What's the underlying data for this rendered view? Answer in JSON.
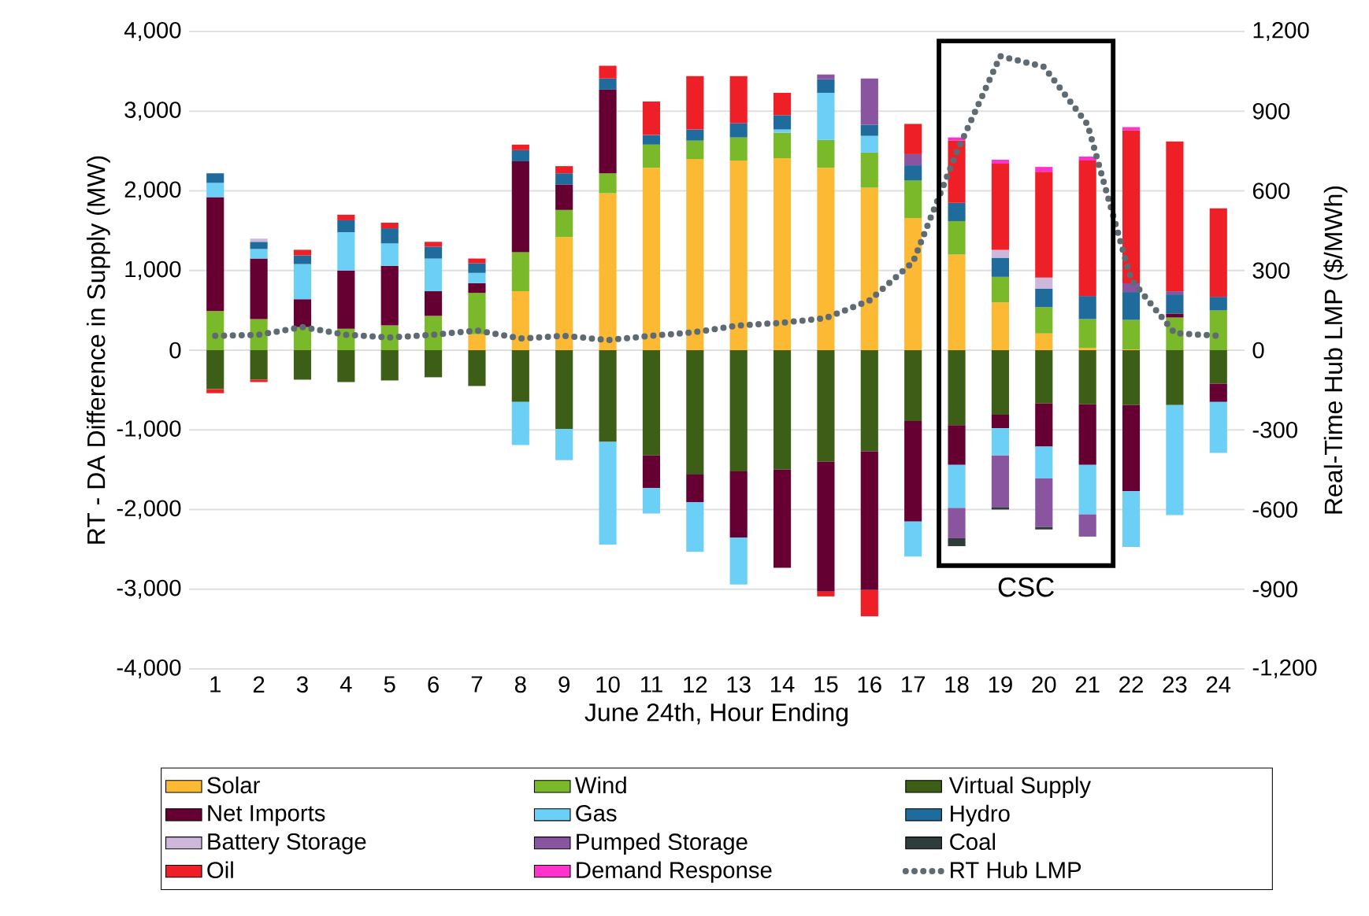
{
  "chart_data": {
    "type": "bar",
    "stacked": true,
    "xlabel": "June 24th, Hour Ending",
    "ylabel": "RT - DA Difference in Supply (MW)",
    "y2label": "Real-Time Hub LMP ($/MWh)",
    "categories": [
      "1",
      "2",
      "3",
      "4",
      "5",
      "6",
      "7",
      "8",
      "9",
      "10",
      "11",
      "12",
      "13",
      "14",
      "15",
      "16",
      "17",
      "18",
      "19",
      "20",
      "21",
      "22",
      "23",
      "24"
    ],
    "series": [
      {
        "name": "Solar",
        "color": "#fbb934",
        "values": [
          null,
          null,
          null,
          null,
          null,
          null,
          200,
          740,
          1420,
          1970,
          2290,
          2400,
          2380,
          2410,
          2290,
          2040,
          1660,
          1200,
          600,
          210,
          30,
          10,
          null,
          null
        ]
      },
      {
        "name": "Wind",
        "color": "#7aba2a",
        "values": [
          490,
          390,
          290,
          270,
          310,
          430,
          520,
          490,
          340,
          250,
          290,
          230,
          290,
          320,
          350,
          440,
          470,
          420,
          320,
          330,
          360,
          370,
          410,
          500
        ]
      },
      {
        "name": "Virtual Supply",
        "color": "#3d5e17",
        "values": [
          -490,
          -370,
          -370,
          -400,
          -380,
          -340,
          -450,
          -650,
          -990,
          -1150,
          -1320,
          -1560,
          -1520,
          -1500,
          -1400,
          -1270,
          -890,
          -940,
          -810,
          -670,
          -680,
          -690,
          -690,
          -420
        ]
      },
      {
        "name": "Net Imports",
        "color": "#660033",
        "values": [
          1430,
          760,
          350,
          730,
          750,
          310,
          120,
          1140,
          320,
          1050,
          -410,
          -350,
          -830,
          -1230,
          -1630,
          -1740,
          -1260,
          -500,
          -170,
          -540,
          -760,
          -1080,
          50,
          -230
        ]
      },
      {
        "name": "Gas",
        "color": "#6bcff6",
        "values": [
          180,
          120,
          440,
          480,
          280,
          410,
          130,
          -540,
          -390,
          -1290,
          -320,
          -620,
          -590,
          40,
          590,
          210,
          -440,
          -540,
          -340,
          -400,
          -620,
          -700,
          -1380,
          -640
        ]
      },
      {
        "name": "Hydro",
        "color": "#1f6b9c",
        "values": [
          120,
          90,
          110,
          150,
          190,
          150,
          120,
          140,
          140,
          140,
          120,
          140,
          180,
          180,
          170,
          140,
          190,
          230,
          240,
          230,
          290,
          350,
          240,
          170
        ]
      },
      {
        "name": "Battery Storage",
        "color": "#cdb8dc",
        "values": [
          null,
          40,
          null,
          null,
          null,
          null,
          null,
          null,
          null,
          null,
          null,
          null,
          null,
          null,
          null,
          null,
          null,
          null,
          100,
          140,
          null,
          null,
          null,
          null
        ]
      },
      {
        "name": "Pumped Storage",
        "color": "#8a559f",
        "values": [
          null,
          null,
          null,
          null,
          null,
          null,
          null,
          null,
          null,
          null,
          null,
          null,
          null,
          null,
          60,
          580,
          140,
          -380,
          -650,
          -610,
          -280,
          110,
          40,
          null
        ]
      },
      {
        "name": "Coal",
        "color": "#2f3c3c",
        "values": [
          null,
          null,
          null,
          null,
          null,
          null,
          null,
          null,
          null,
          null,
          null,
          null,
          null,
          null,
          null,
          null,
          null,
          -100,
          -30,
          -30,
          null,
          null,
          null,
          null
        ]
      },
      {
        "name": "Oil",
        "color": "#ee1f26",
        "values": [
          -50,
          -30,
          70,
          70,
          70,
          60,
          60,
          70,
          90,
          160,
          420,
          670,
          590,
          280,
          -60,
          -330,
          380,
          780,
          1080,
          1330,
          1700,
          1920,
          1880,
          1110
        ]
      },
      {
        "name": "Demand Response",
        "color": "#ff33cc",
        "values": [
          null,
          null,
          null,
          null,
          null,
          null,
          null,
          null,
          null,
          null,
          null,
          null,
          null,
          null,
          null,
          null,
          null,
          40,
          50,
          60,
          50,
          40,
          null,
          null
        ]
      },
      {
        "name": "RT Hub LMP",
        "color": "#5f6b73",
        "type": "line",
        "axis": "y2",
        "line_style": "dotted",
        "values": [
          54,
          58,
          87,
          58,
          48,
          58,
          74,
          44,
          54,
          38,
          54,
          68,
          93,
          103,
          121,
          187,
          332,
          745,
          1107,
          1067,
          850,
          266,
          64,
          54
        ]
      }
    ],
    "ylim": [
      -4000,
      4000
    ],
    "yticks": [
      {
        "value": -4000,
        "label": "-4,000"
      },
      {
        "value": -3000,
        "label": "-3,000"
      },
      {
        "value": -2000,
        "label": "-2,000"
      },
      {
        "value": -1000,
        "label": "-1,000"
      },
      0,
      {
        "value": 1000,
        "label": "1,000"
      },
      {
        "value": 2000,
        "label": "2,000"
      },
      {
        "value": 3000,
        "label": "3,000"
      },
      {
        "value": 4000,
        "label": "4,000"
      }
    ],
    "y2lim": [
      -1200,
      1200
    ],
    "y2ticks": [
      {
        "value": -1200,
        "label": "-1,200"
      },
      -900,
      -600,
      -300,
      0,
      300,
      600,
      900,
      {
        "value": 1200,
        "label": "1,200"
      }
    ],
    "grid": "y",
    "legend": "bottom",
    "annotations": [
      "CSC"
    ]
  }
}
